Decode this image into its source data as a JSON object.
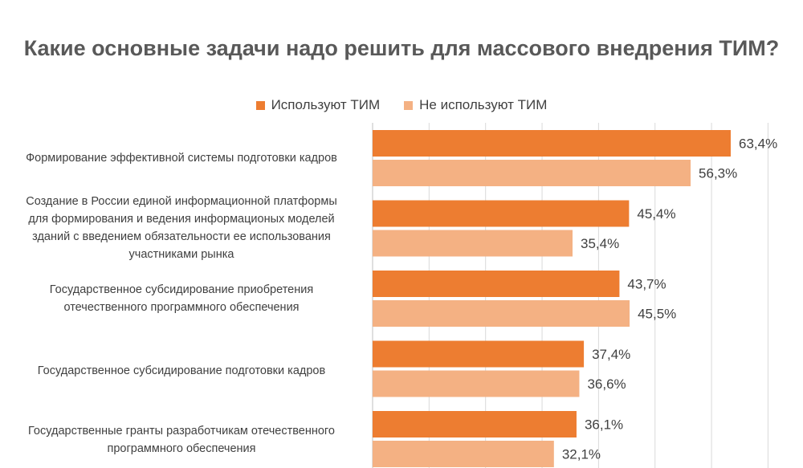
{
  "chart_data": {
    "type": "bar",
    "orientation": "horizontal",
    "title": "Какие основные задачи надо решить для массового внедрения ТИМ?",
    "categories": [
      "Формирование эффективной системы подготовки кадров",
      "Создание в России единой информационной платформы\nдля формирования и ведения информационых моделей\nзданий с введением обязательности ее использования\nучастниками рынка",
      "Государственное субсидирование приобретения\nотечественного программного обеспечения",
      "Государственное субсидирование подготовки кадров",
      "Государственные гранты разработчикам отечественного\nпрограммного обеспечения"
    ],
    "series": [
      {
        "name": "Используют ТИМ",
        "color": "#ED7D31",
        "values": [
          63.4,
          45.4,
          43.7,
          37.4,
          36.1
        ],
        "labels": [
          "63,4%",
          "45,4%",
          "43,7%",
          "37,4%",
          "36,1%"
        ]
      },
      {
        "name": "Не используют ТИМ",
        "color": "#F4B183",
        "values": [
          56.3,
          35.4,
          45.5,
          36.6,
          32.1
        ],
        "labels": [
          "56,3%",
          "35,4%",
          "45,5%",
          "36,6%",
          "32,1%"
        ]
      }
    ],
    "xlim": [
      0,
      70
    ],
    "grid": true,
    "legend": "top-center"
  }
}
